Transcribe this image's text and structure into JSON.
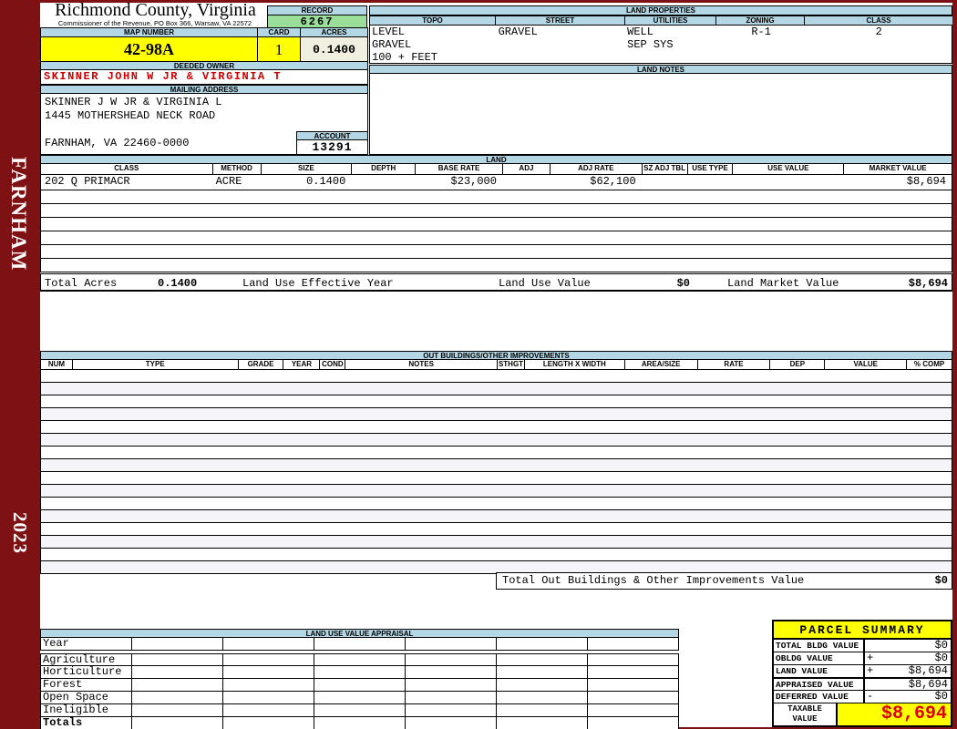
{
  "header": {
    "title": "Richmond County, Virginia",
    "subtitle": "Commissioner of the Revenue, PO Box 366, Warsaw, VA 22572",
    "record_label": "RECORD",
    "record_value": "6267",
    "map_number_label": "MAP NUMBER",
    "map_number": "42-98A",
    "card_label": "CARD",
    "card_value": "1",
    "acres_label": "ACRES",
    "acres_value": "0.1400"
  },
  "sidebar": {
    "district": "FARNHAM",
    "year": "2023"
  },
  "land_properties": {
    "title": "LAND PROPERTIES",
    "columns": [
      "TOPO",
      "STREET",
      "UTILITIES",
      "ZONING",
      "CLASS"
    ],
    "topo_lines": [
      "LEVEL",
      "GRAVEL",
      "100 + FEET"
    ],
    "street": "GRAVEL",
    "utilities_lines": [
      "WELL",
      "SEP SYS"
    ],
    "zoning": "R-1",
    "class_value": "2"
  },
  "owner": {
    "deeded_owner_label": "DEEDED OWNER",
    "name": "SKINNER JOHN W JR & VIRGINIA T",
    "mailing_address_label": "MAILING ADDRESS",
    "address_lines": [
      "SKINNER J W JR & VIRGINIA L",
      "1445 MOTHERSHEAD NECK ROAD",
      "",
      "FARNHAM, VA 22460-0000"
    ],
    "account_label": "ACCOUNT",
    "account_value": "13291"
  },
  "land_notes": {
    "title": "LAND NOTES"
  },
  "land": {
    "title": "LAND",
    "columns": [
      "CLASS",
      "METHOD",
      "SIZE",
      "DEPTH",
      "BASE RATE",
      "ADJ",
      "ADJ RATE",
      "SZ ADJ TBL",
      "USE TYPE",
      "USE VALUE",
      "MARKET VALUE"
    ],
    "row": [
      "202 Q PRIMACR",
      "ACRE",
      "0.1400",
      "",
      "$23,000",
      "",
      "$62,100",
      "",
      "",
      "",
      "$8,694"
    ],
    "empty_rows": 6,
    "totals": {
      "acres_label": "Total Acres",
      "acres": "0.1400",
      "effective_year_label": "Land Use Effective Year",
      "use_value_label": "Land Use Value",
      "use_value": "$0",
      "market_value_label": "Land Market Value",
      "market_value": "$8,694"
    }
  },
  "out_buildings": {
    "title": "OUT BUILDINGS/OTHER IMPROVEMENTS",
    "columns": [
      "NUM",
      "TYPE",
      "GRADE",
      "YEAR",
      "COND",
      "NOTES",
      "STHGT",
      "LENGTH X WIDTH",
      "AREA/SIZE",
      "RATE",
      "DEP",
      "VALUE",
      "% COMP"
    ],
    "empty_rows": 16,
    "total_label": "Total Out Buildings & Other Improvements Value",
    "total_value": "$0"
  },
  "land_use_appraisal": {
    "title": "LAND USE VALUE APPRAISAL",
    "row_labels": [
      "Year",
      "Agriculture",
      "Horticulture",
      "Forest",
      "Open Space",
      "Ineligible",
      "Totals"
    ],
    "data_columns": 6
  },
  "parcel_summary": {
    "title": "PARCEL SUMMARY",
    "rows": [
      {
        "label": "TOTAL BLDG VALUE",
        "op": "",
        "value": "$0"
      },
      {
        "label": "OBLDG VALUE",
        "op": "+",
        "value": "$0"
      },
      {
        "label": "LAND VALUE",
        "op": "+",
        "value": "$8,694"
      },
      {
        "label": "APPRAISED VALUE",
        "op": "",
        "value": "$8,694"
      },
      {
        "label": "DEFERRED VALUE",
        "op": "-",
        "value": "$0"
      }
    ],
    "taxable_label_lines": [
      "TAXABLE",
      "VALUE"
    ],
    "taxable_value": "$8,694"
  },
  "colors": {
    "frame_maroon": "#7D1114",
    "header_blue": "#B4D7E5",
    "record_green": "#9ADE9A",
    "highlight_yellow": "#FFFF00",
    "acres_cream": "#F1EFDF",
    "owner_red": "#CC0000",
    "taxable_red": "#DD0000"
  }
}
